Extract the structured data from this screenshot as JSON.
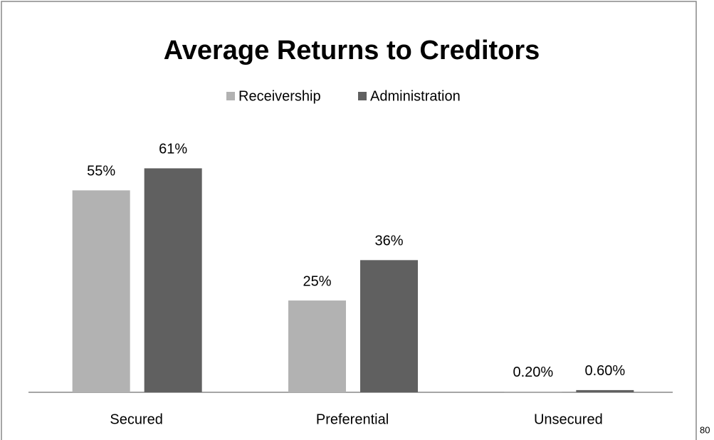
{
  "chart_data": {
    "type": "bar",
    "title": "Average Returns to Creditors",
    "categories": [
      "Secured",
      "Preferential",
      "Unsecured"
    ],
    "series": [
      {
        "name": "Receivership",
        "color": "#b2b2b2",
        "values": [
          55,
          25,
          0.2
        ],
        "value_labels": [
          "55%",
          "25%",
          "0.20%"
        ]
      },
      {
        "name": "Administration",
        "color": "#606060",
        "values": [
          61,
          36,
          0.6
        ],
        "value_labels": [
          "61%",
          "36%",
          "0.60%"
        ]
      }
    ],
    "ylim": [
      0,
      70
    ],
    "legend": "top"
  },
  "page_number": "80"
}
